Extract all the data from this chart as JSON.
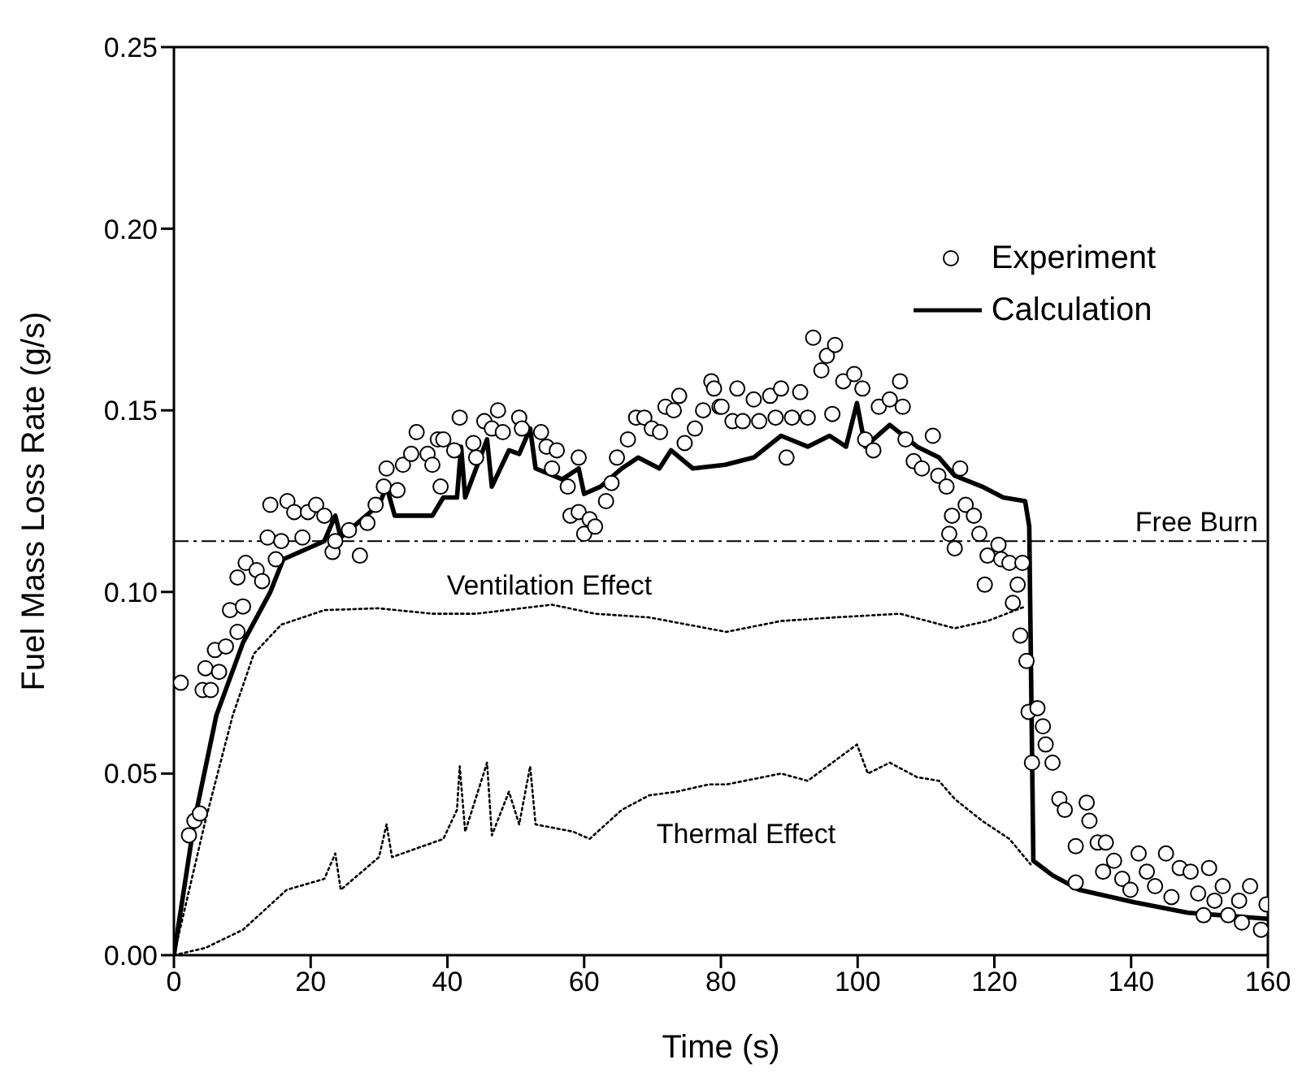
{
  "chart_data": {
    "type": "line",
    "xlabel": "Time (s)",
    "ylabel": "Fuel Mass Loss Rate (g/s)",
    "xlim": [
      0,
      160
    ],
    "xticks": [
      0,
      20,
      40,
      60,
      80,
      100,
      120,
      140,
      160
    ],
    "ylim": [
      0,
      0.25
    ],
    "yticks": [
      {
        "value": 0,
        "label": "0.00"
      },
      {
        "value": 0.05,
        "label": "0.05"
      },
      {
        "value": 0.1,
        "label": "0.10"
      },
      {
        "value": 0.15,
        "label": "0.15"
      },
      {
        "value": 0.2,
        "label": "0.20"
      },
      {
        "value": 0.25,
        "label": "0.25"
      }
    ],
    "legend": "top right",
    "series": [
      {
        "name": "Experiment",
        "type": "scatter",
        "marker": "circle",
        "color": "#000000",
        "x": [
          1,
          2.2,
          3,
          3.8,
          4.2,
          5.4,
          4.6,
          6,
          6.6,
          7.6,
          8.2,
          9.3,
          10.1,
          9.3,
          10.5,
          12.1,
          12.9,
          13.7,
          14.1,
          14.9,
          15.7,
          16.6,
          17.6,
          18.8,
          19.6,
          20.8,
          22,
          23.2,
          23.6,
          25.6,
          27.2,
          28.3,
          29.5,
          30.7,
          31.1,
          32.7,
          33.5,
          34.7,
          35.5,
          37.1,
          37.8,
          38.6,
          39.4,
          39,
          41,
          41.8,
          43.8,
          44.2,
          45.4,
          47.4,
          46.5,
          48.1,
          50.5,
          50.9,
          53.7,
          54.5,
          56,
          55.3,
          57.6,
          58,
          59.2,
          59.2,
          60,
          60.8,
          61.6,
          63.2,
          64,
          64.8,
          66.4,
          67.6,
          68.8,
          69.9,
          71.1,
          71.9,
          73.1,
          73.9,
          74.7,
          76.2,
          77.4,
          78.6,
          79,
          79.8,
          80.1,
          81.7,
          82.4,
          83.2,
          84.8,
          85.6,
          87.2,
          88,
          88.8,
          89.6,
          90.4,
          91.6,
          92.7,
          93.5,
          94.7,
          95.5,
          96.7,
          96.3,
          97.9,
          99.5,
          100.7,
          101.1,
          102.3,
          103.1,
          104.7,
          106.2,
          106.6,
          107,
          108.2,
          109.4,
          111,
          111.8,
          113,
          113.8,
          113.4,
          114.2,
          115,
          115.8,
          117,
          117.8,
          118.6,
          119,
          120.6,
          121,
          122.2,
          123.4,
          124.1,
          122.7,
          123.8,
          124.7,
          125,
          126.3,
          127.1,
          127.5,
          128.5,
          125.5,
          129.5,
          130.3,
          131.9,
          131.9,
          133.5,
          133.9,
          135.1,
          136.3,
          135.9,
          137.5,
          138.7,
          139.9,
          141.1,
          142.3,
          143.5,
          145.1,
          145.9,
          147.1,
          148.7,
          149.8,
          150.6,
          151.4,
          152.2,
          153.4,
          154.2,
          155.8,
          156.2,
          157.4,
          159,
          159.8
        ],
        "values": [
          0.075,
          0.033,
          0.037,
          0.039,
          0.073,
          0.073,
          0.079,
          0.084,
          0.078,
          0.085,
          0.095,
          0.089,
          0.096,
          0.104,
          0.108,
          0.106,
          0.103,
          0.115,
          0.124,
          0.109,
          0.114,
          0.125,
          0.122,
          0.115,
          0.122,
          0.124,
          0.121,
          0.111,
          0.114,
          0.117,
          0.11,
          0.119,
          0.124,
          0.129,
          0.134,
          0.128,
          0.135,
          0.138,
          0.144,
          0.138,
          0.135,
          0.142,
          0.142,
          0.129,
          0.139,
          0.148,
          0.141,
          0.137,
          0.147,
          0.15,
          0.145,
          0.144,
          0.148,
          0.145,
          0.144,
          0.14,
          0.139,
          0.134,
          0.129,
          0.121,
          0.137,
          0.122,
          0.116,
          0.12,
          0.118,
          0.125,
          0.13,
          0.137,
          0.142,
          0.148,
          0.148,
          0.145,
          0.144,
          0.151,
          0.15,
          0.154,
          0.141,
          0.145,
          0.15,
          0.158,
          0.156,
          0.151,
          0.151,
          0.147,
          0.156,
          0.147,
          0.153,
          0.147,
          0.154,
          0.148,
          0.156,
          0.137,
          0.148,
          0.155,
          0.148,
          0.17,
          0.161,
          0.165,
          0.168,
          0.149,
          0.158,
          0.16,
          0.156,
          0.142,
          0.139,
          0.151,
          0.153,
          0.158,
          0.151,
          0.142,
          0.136,
          0.134,
          0.143,
          0.132,
          0.129,
          0.121,
          0.116,
          0.112,
          0.134,
          0.124,
          0.121,
          0.116,
          0.102,
          0.11,
          0.113,
          0.109,
          0.108,
          0.102,
          0.108,
          0.097,
          0.088,
          0.081,
          0.067,
          0.068,
          0.063,
          0.058,
          0.053,
          0.053,
          0.043,
          0.04,
          0.03,
          0.02,
          0.042,
          0.037,
          0.031,
          0.031,
          0.023,
          0.026,
          0.021,
          0.018,
          0.028,
          0.023,
          0.019,
          0.028,
          0.016,
          0.024,
          0.023,
          0.017,
          0.011,
          0.024,
          0.015,
          0.019,
          0.011,
          0.015,
          0.009,
          0.019,
          0.007,
          0.014
        ]
      },
      {
        "name": "Calculation",
        "line_style": "solid",
        "color": "#000000",
        "x": [
          0,
          3,
          6.2,
          10.1,
          14.1,
          16,
          22,
          23.6,
          24.4,
          30,
          31.1,
          32.3,
          37.8,
          39.4,
          41.4,
          42,
          42.6,
          45.8,
          46.5,
          49,
          50.5,
          52.1,
          52.9,
          56.8,
          59.2,
          60,
          62.4,
          65.5,
          67.9,
          71,
          72.7,
          75.9,
          80.6,
          84.8,
          88.8,
          92.7,
          95.9,
          98.3,
          99.9,
          101.1,
          104.7,
          108.7,
          111.9,
          114.2,
          118.2,
          121.3,
          124.5,
          125.1,
          125.7,
          128.5,
          132.4,
          140.4,
          148.3,
          160
        ],
        "values": [
          0,
          0.037,
          0.066,
          0.086,
          0.1,
          0.109,
          0.114,
          0.121,
          0.115,
          0.124,
          0.129,
          0.121,
          0.121,
          0.126,
          0.126,
          0.14,
          0.126,
          0.142,
          0.129,
          0.139,
          0.138,
          0.145,
          0.134,
          0.131,
          0.134,
          0.127,
          0.129,
          0.134,
          0.137,
          0.134,
          0.139,
          0.134,
          0.135,
          0.137,
          0.143,
          0.14,
          0.143,
          0.14,
          0.152,
          0.14,
          0.146,
          0.14,
          0.137,
          0.132,
          0.129,
          0.126,
          0.125,
          0.118,
          0.026,
          0.022,
          0.018,
          0.0146,
          0.0117,
          0.01
        ]
      },
      {
        "line_style": "dotted",
        "color": "#000000",
        "x": [
          0,
          4.6,
          8.6,
          11.7,
          15.7,
          22,
          29.9,
          37.8,
          44.2,
          55.3,
          61.6,
          69.5,
          80.8,
          88.8,
          96.7,
          106.2,
          114.2,
          119,
          124.5
        ],
        "values": [
          0,
          0.037,
          0.066,
          0.083,
          0.091,
          0.095,
          0.0955,
          0.094,
          0.094,
          0.0965,
          0.094,
          0.093,
          0.089,
          0.092,
          0.093,
          0.094,
          0.09,
          0.092,
          0.096
        ]
      },
      {
        "line_style": "dotted",
        "color": "#000000",
        "x": [
          0,
          4.6,
          10.1,
          16.5,
          22,
          23.6,
          24.4,
          30,
          31.1,
          31.9,
          39.4,
          41.4,
          41.8,
          42.6,
          45.8,
          46.5,
          49,
          50.5,
          52.1,
          52.9,
          58.4,
          60.8,
          65.5,
          69.5,
          73.5,
          78.2,
          80.8,
          88.8,
          92.7,
          99.9,
          101.5,
          104.7,
          108.7,
          111.9,
          114.2,
          118.2,
          122.2,
          125.3
        ],
        "values": [
          0,
          0.002,
          0.007,
          0.018,
          0.021,
          0.028,
          0.018,
          0.027,
          0.036,
          0.027,
          0.032,
          0.04,
          0.052,
          0.034,
          0.053,
          0.033,
          0.045,
          0.036,
          0.052,
          0.036,
          0.034,
          0.032,
          0.04,
          0.044,
          0.045,
          0.047,
          0.047,
          0.05,
          0.048,
          0.058,
          0.05,
          0.053,
          0.049,
          0.048,
          0.043,
          0.037,
          0.032,
          0.025
        ]
      }
    ],
    "ref_lines": [
      {
        "axis": "y",
        "value": 0.114,
        "label": "Free Burn",
        "line_style": "dashdot",
        "color": "#000000"
      }
    ],
    "annotations": [
      "Ventilation Effect",
      "Thermal Effect"
    ]
  }
}
